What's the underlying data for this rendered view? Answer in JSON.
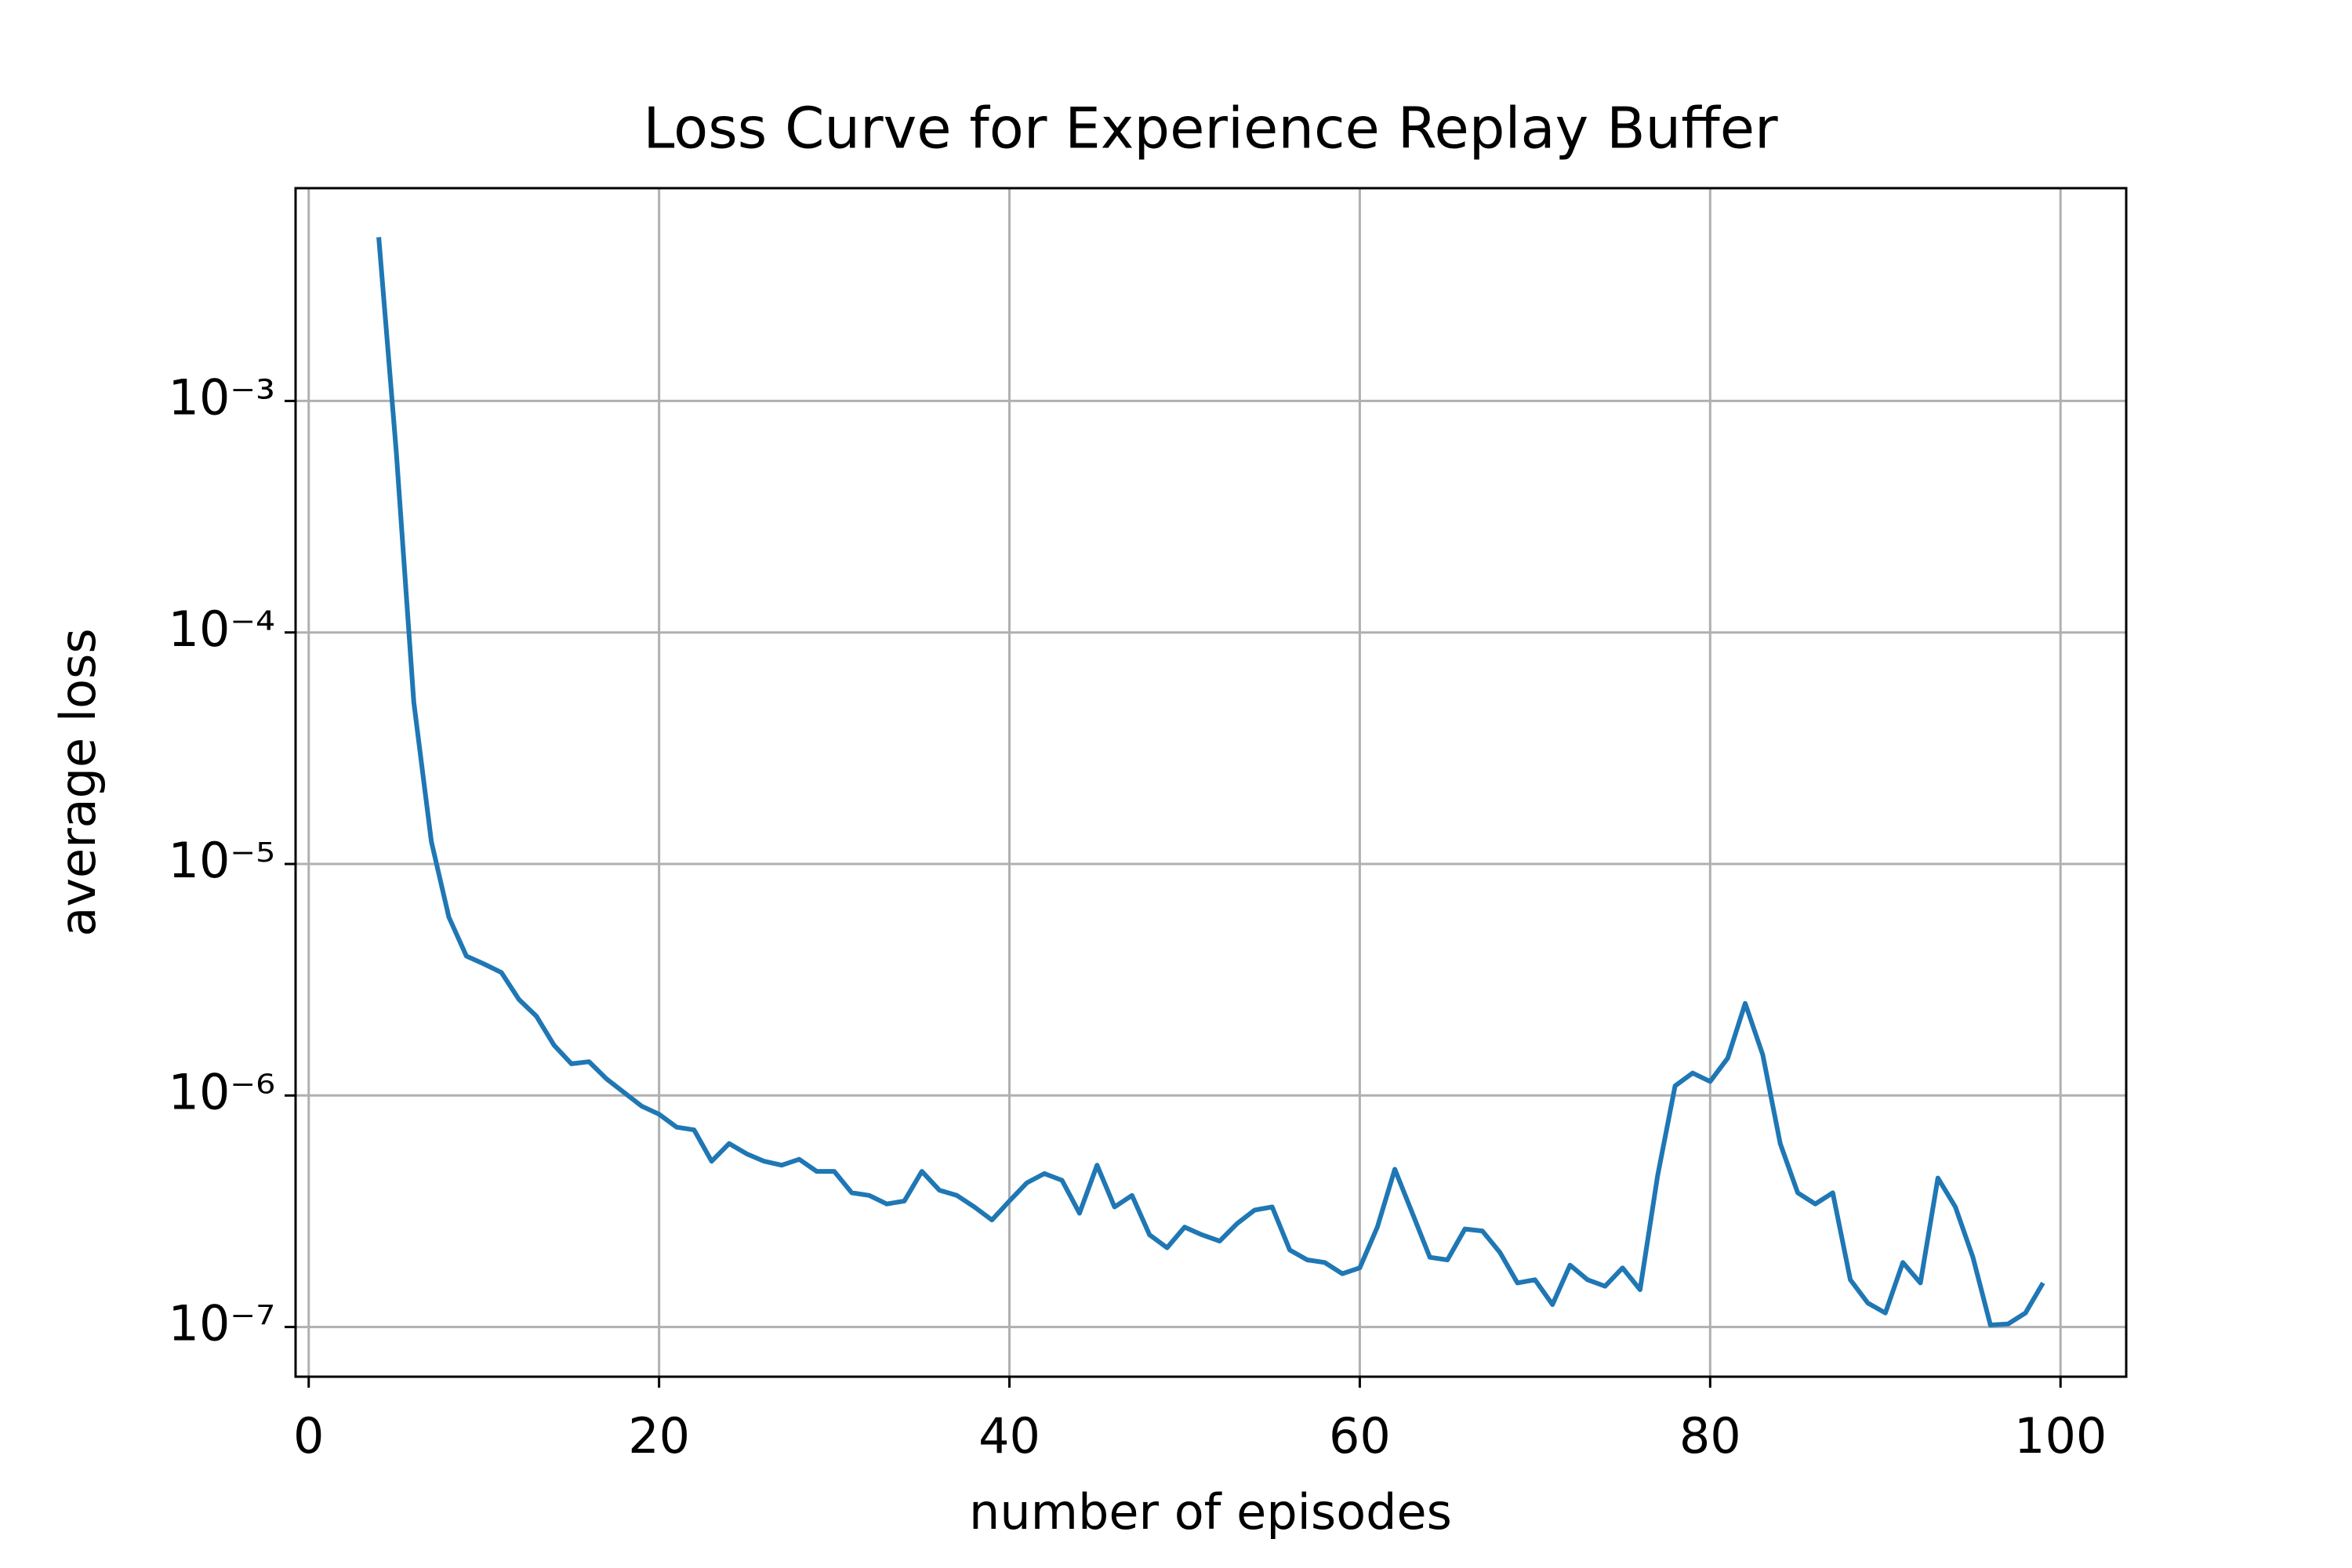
{
  "chart_data": {
    "type": "line",
    "title": "Loss Curve for Experience Replay Buffer",
    "x_label": "number of episodes",
    "y_label": "average loss",
    "x": [
      4,
      5,
      6,
      7,
      8,
      9,
      10,
      11,
      12,
      13,
      14,
      15,
      16,
      17,
      18,
      19,
      20,
      21,
      22,
      23,
      24,
      25,
      26,
      27,
      28,
      29,
      30,
      31,
      32,
      33,
      34,
      35,
      36,
      37,
      38,
      39,
      40,
      41,
      42,
      43,
      44,
      45,
      46,
      47,
      48,
      49,
      50,
      51,
      52,
      53,
      54,
      55,
      56,
      57,
      58,
      59,
      60,
      61,
      62,
      63,
      64,
      65,
      66,
      67,
      68,
      69,
      70,
      71,
      72,
      73,
      74,
      75,
      76,
      77,
      78,
      79,
      80,
      81,
      82,
      83,
      84,
      85,
      86,
      87,
      88,
      89,
      90,
      91,
      92,
      93,
      94,
      95,
      96,
      97,
      98,
      99
    ],
    "series": [
      {
        "color": "#1f77b4",
        "values": [
          0.0051,
          0.0006,
          5e-05,
          1.25e-05,
          5.9e-06,
          4e-06,
          3.7e-06,
          3.4e-06,
          2.6e-06,
          2.2e-06,
          1.65e-06,
          1.37e-06,
          1.4e-06,
          1.18e-06,
          1.03e-06,
          9e-07,
          8.3e-07,
          7.3e-07,
          7.1e-07,
          5.2e-07,
          6.2e-07,
          5.6e-07,
          5.2e-07,
          5e-07,
          5.3e-07,
          4.7e-07,
          4.7e-07,
          3.8e-07,
          3.7e-07,
          3.4e-07,
          3.5e-07,
          4.7e-07,
          3.9e-07,
          3.7e-07,
          3.3e-07,
          2.9e-07,
          3.5e-07,
          4.2e-07,
          4.6e-07,
          4.3e-07,
          3.1e-07,
          5e-07,
          3.3e-07,
          3.7e-07,
          2.5e-07,
          2.2e-07,
          2.7e-07,
          2.5e-07,
          2.35e-07,
          2.8e-07,
          3.2e-07,
          3.3e-07,
          2.15e-07,
          1.95e-07,
          1.9e-07,
          1.7e-07,
          1.8e-07,
          2.7e-07,
          4.8e-07,
          3.1e-07,
          2e-07,
          1.95e-07,
          2.65e-07,
          2.6e-07,
          2.1e-07,
          1.55e-07,
          1.6e-07,
          1.25e-07,
          1.85e-07,
          1.6e-07,
          1.5e-07,
          1.8e-07,
          1.45e-07,
          4.5e-07,
          1.1e-06,
          1.25e-06,
          1.15e-06,
          1.45e-06,
          2.5e-06,
          1.5e-06,
          6.2e-07,
          3.8e-07,
          3.4e-07,
          3.8e-07,
          1.6e-07,
          1.27e-07,
          1.15e-07,
          1.9e-07,
          1.55e-07,
          4.4e-07,
          3.3e-07,
          2e-07,
          1.02e-07,
          1.03e-07,
          1.15e-07,
          1.55e-07
        ]
      }
    ],
    "xlim": [
      -0.75,
      103.75
    ],
    "xticks": [
      0,
      20,
      40,
      60,
      80,
      100
    ],
    "ylim": [
      6.1e-08,
      0.0083
    ],
    "ylog": true,
    "yticks": [
      {
        "value": 1e-07,
        "label": "10⁻⁷"
      },
      {
        "value": 1e-06,
        "label": "10⁻⁶"
      },
      {
        "value": 1e-05,
        "label": "10⁻⁵"
      },
      {
        "value": 0.0001,
        "label": "10⁻⁴"
      },
      {
        "value": 0.001,
        "label": "10⁻³"
      }
    ],
    "grid": true
  }
}
